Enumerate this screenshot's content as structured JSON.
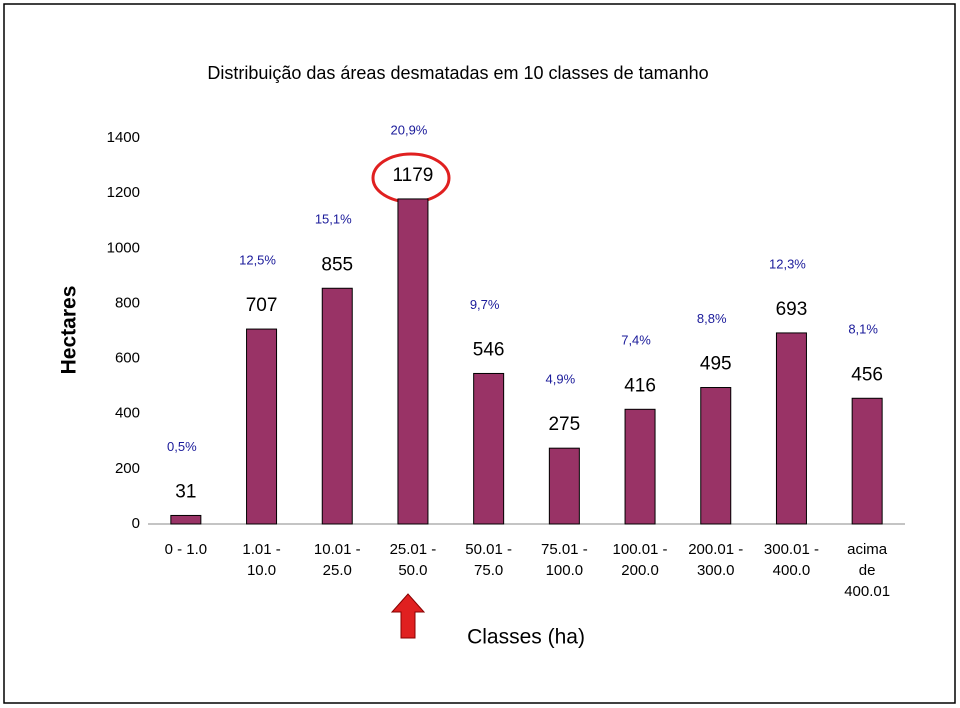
{
  "chart_data": {
    "type": "bar",
    "title": "Distribuição das áreas desmatadas em 10 classes de tamanho",
    "y_label": "Hectares",
    "x_label": "Classes (ha)",
    "categories": [
      "0 - 1.0",
      "1.01 - 10.0",
      "10.01 - 25.0",
      "25.01 - 50.0",
      "50.01 - 75.0",
      "75.01 - 100.0",
      "100.01 - 200.0",
      "200.01 - 300.0",
      "300.01 - 400.0",
      "acima de 400.01"
    ],
    "values": [
      31,
      707,
      855,
      1179,
      546,
      275,
      416,
      495,
      693,
      456
    ],
    "percent_labels": [
      "0,5%",
      "12,5%",
      "15,1%",
      "20,9%",
      "9,7%",
      "4,9%",
      "7,4%",
      "8,8%",
      "12,3%",
      "8,1%"
    ],
    "color": "#993366",
    "ylim": [
      0,
      1400
    ],
    "yticks": [
      0,
      200,
      400,
      600,
      800,
      1000,
      1200,
      1400
    ]
  }
}
